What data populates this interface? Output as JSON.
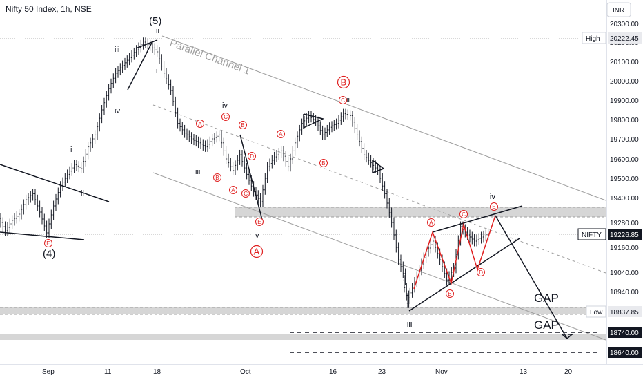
{
  "header": {
    "title": "Nifty 50 Index, 1h, NSE",
    "currency": "INR"
  },
  "chart_data": {
    "type": "candlestick",
    "symbol": "NIFTY",
    "last_price": 19226.85,
    "high": 20222.45,
    "low": 18837.85,
    "ylim": [
      18560,
      20380
    ],
    "y_ticks": [
      20300,
      20200,
      20100,
      20000,
      19900,
      19800,
      19700,
      19600,
      19500,
      19400,
      19280,
      19160,
      19040,
      18940
    ],
    "y_tick_labels": [
      "20300.00",
      "20200.00",
      "20100.00",
      "20000.00",
      "19900.00",
      "19800.00",
      "19700.00",
      "19600.00",
      "19500.00",
      "19400.00",
      "19280.00",
      "19160.00",
      "19040.00",
      "18940.00"
    ],
    "x_tick_labels": [
      "Sep",
      "11",
      "18",
      "Oct",
      "16",
      "23",
      "Nov",
      "13",
      "20"
    ],
    "price_tags": [
      {
        "label": "High",
        "value": "20222.45",
        "style": "plain"
      },
      {
        "label": "NIFTY",
        "value": "19226.85",
        "style": "dark"
      },
      {
        "label": "Low",
        "value": "18837.85",
        "style": "plain"
      },
      {
        "label": "",
        "value": "18740.00",
        "style": "dark"
      },
      {
        "label": "",
        "value": "18640.00",
        "style": "dark"
      }
    ],
    "wave_labels": [
      "(5)",
      "(4)",
      "iii",
      "iv",
      "i",
      "ii",
      "i",
      "ii",
      "iv",
      "iii",
      "v",
      "iii",
      "iv",
      "ii",
      "iii",
      "iv"
    ],
    "circled_labels": [
      "A",
      "B",
      "C",
      "D",
      "E"
    ],
    "big_circled_labels": [
      "A",
      "B"
    ],
    "annotations": {
      "channel": "Parallel Channel 1",
      "gap": "GAP"
    },
    "colors": {
      "candle": "#131722",
      "wave_red": "#e02020",
      "zone": "#d6d6d6",
      "channel": "#9e9e9e",
      "dark_tag": "#131722"
    }
  }
}
